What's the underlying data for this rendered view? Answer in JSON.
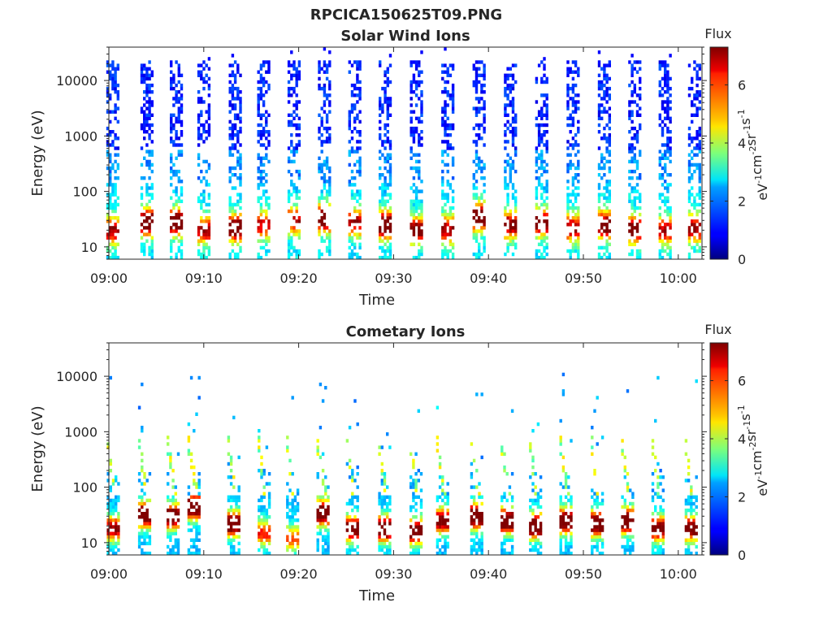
{
  "figure": {
    "filename": "RPCICA150625T09.PNG"
  },
  "chart_data": [
    {
      "type": "heatmap",
      "title": "Solar Wind Ions",
      "xlabel": "Time",
      "ylabel": "Energy (eV)",
      "x_ticks": [
        "09:00",
        "09:10",
        "09:20",
        "09:30",
        "09:40",
        "09:50",
        "10:00"
      ],
      "xlim_minutes": [
        0,
        62.5
      ],
      "y_scale": "log",
      "y_ticks": [
        "10",
        "100",
        "1000",
        "10000"
      ],
      "ylim": [
        6,
        40000
      ],
      "colorbar": {
        "title": "Flux",
        "label_parts": [
          "eV",
          "-1",
          "cm",
          "-2",
          "sr",
          "-1",
          "s",
          "-1"
        ],
        "ticks": [
          "0",
          "2",
          "4",
          "6"
        ],
        "range": [
          0,
          7.3
        ],
        "colormap": "jet"
      },
      "sweeps_minutes": [
        0.4,
        4.0,
        7.1,
        10.0,
        13.3,
        16.3,
        19.5,
        22.7,
        25.9,
        29.1,
        32.4,
        35.7,
        39.0,
        42.3,
        45.6,
        48.9,
        52.2,
        55.4,
        58.6,
        61.7
      ],
      "peak_energy_eV": [
        20,
        28,
        28,
        20,
        22,
        25,
        30,
        33,
        28,
        25,
        20,
        21,
        35,
        25,
        28,
        22,
        25,
        21,
        20,
        22
      ],
      "peak_flux": [
        4.5,
        6.0,
        5.8,
        4.4,
        5.6,
        4.2,
        4.4,
        6.0,
        4.6,
        6.0,
        5.2,
        4.6,
        6.2,
        5.0,
        5.4,
        4.6,
        5.6,
        5.4,
        4.4,
        4.8
      ],
      "high_energy_band_eV": [
        500,
        20000
      ],
      "high_energy_flux": 1.1
    },
    {
      "type": "heatmap",
      "title": "Cometary Ions",
      "xlabel": "Time",
      "ylabel": "Energy (eV)",
      "x_ticks": [
        "09:00",
        "09:10",
        "09:20",
        "09:30",
        "09:40",
        "09:50",
        "10:00"
      ],
      "xlim_minutes": [
        0,
        62.5
      ],
      "y_scale": "log",
      "y_ticks": [
        "10",
        "100",
        "1000",
        "10000"
      ],
      "ylim": [
        6,
        40000
      ],
      "colorbar": {
        "title": "Flux",
        "label_parts": [
          "eV",
          "-1",
          "cm",
          "-2",
          "sr",
          "-1",
          "s",
          "-1"
        ],
        "ticks": [
          "0",
          "2",
          "4",
          "6"
        ],
        "range": [
          0,
          7.3
        ],
        "colormap": "jet"
      },
      "sweeps_minutes": [
        0.4,
        3.7,
        6.7,
        8.9,
        13.1,
        16.3,
        19.3,
        22.5,
        25.6,
        29.0,
        32.3,
        35.1,
        38.7,
        41.9,
        44.9,
        48.1,
        51.4,
        54.6,
        57.8,
        61.3
      ],
      "peak_energy_eV": [
        18,
        32,
        30,
        45,
        22,
        15,
        12,
        35,
        18,
        18,
        16,
        25,
        30,
        25,
        20,
        25,
        22,
        25,
        18,
        18
      ],
      "peak_flux": [
        5.0,
        6.6,
        6.2,
        6.6,
        6.2,
        4.0,
        3.6,
        6.6,
        6.0,
        6.8,
        6.2,
        5.6,
        6.8,
        6.4,
        6.6,
        6.4,
        6.4,
        6.6,
        5.6,
        5.6
      ]
    }
  ]
}
